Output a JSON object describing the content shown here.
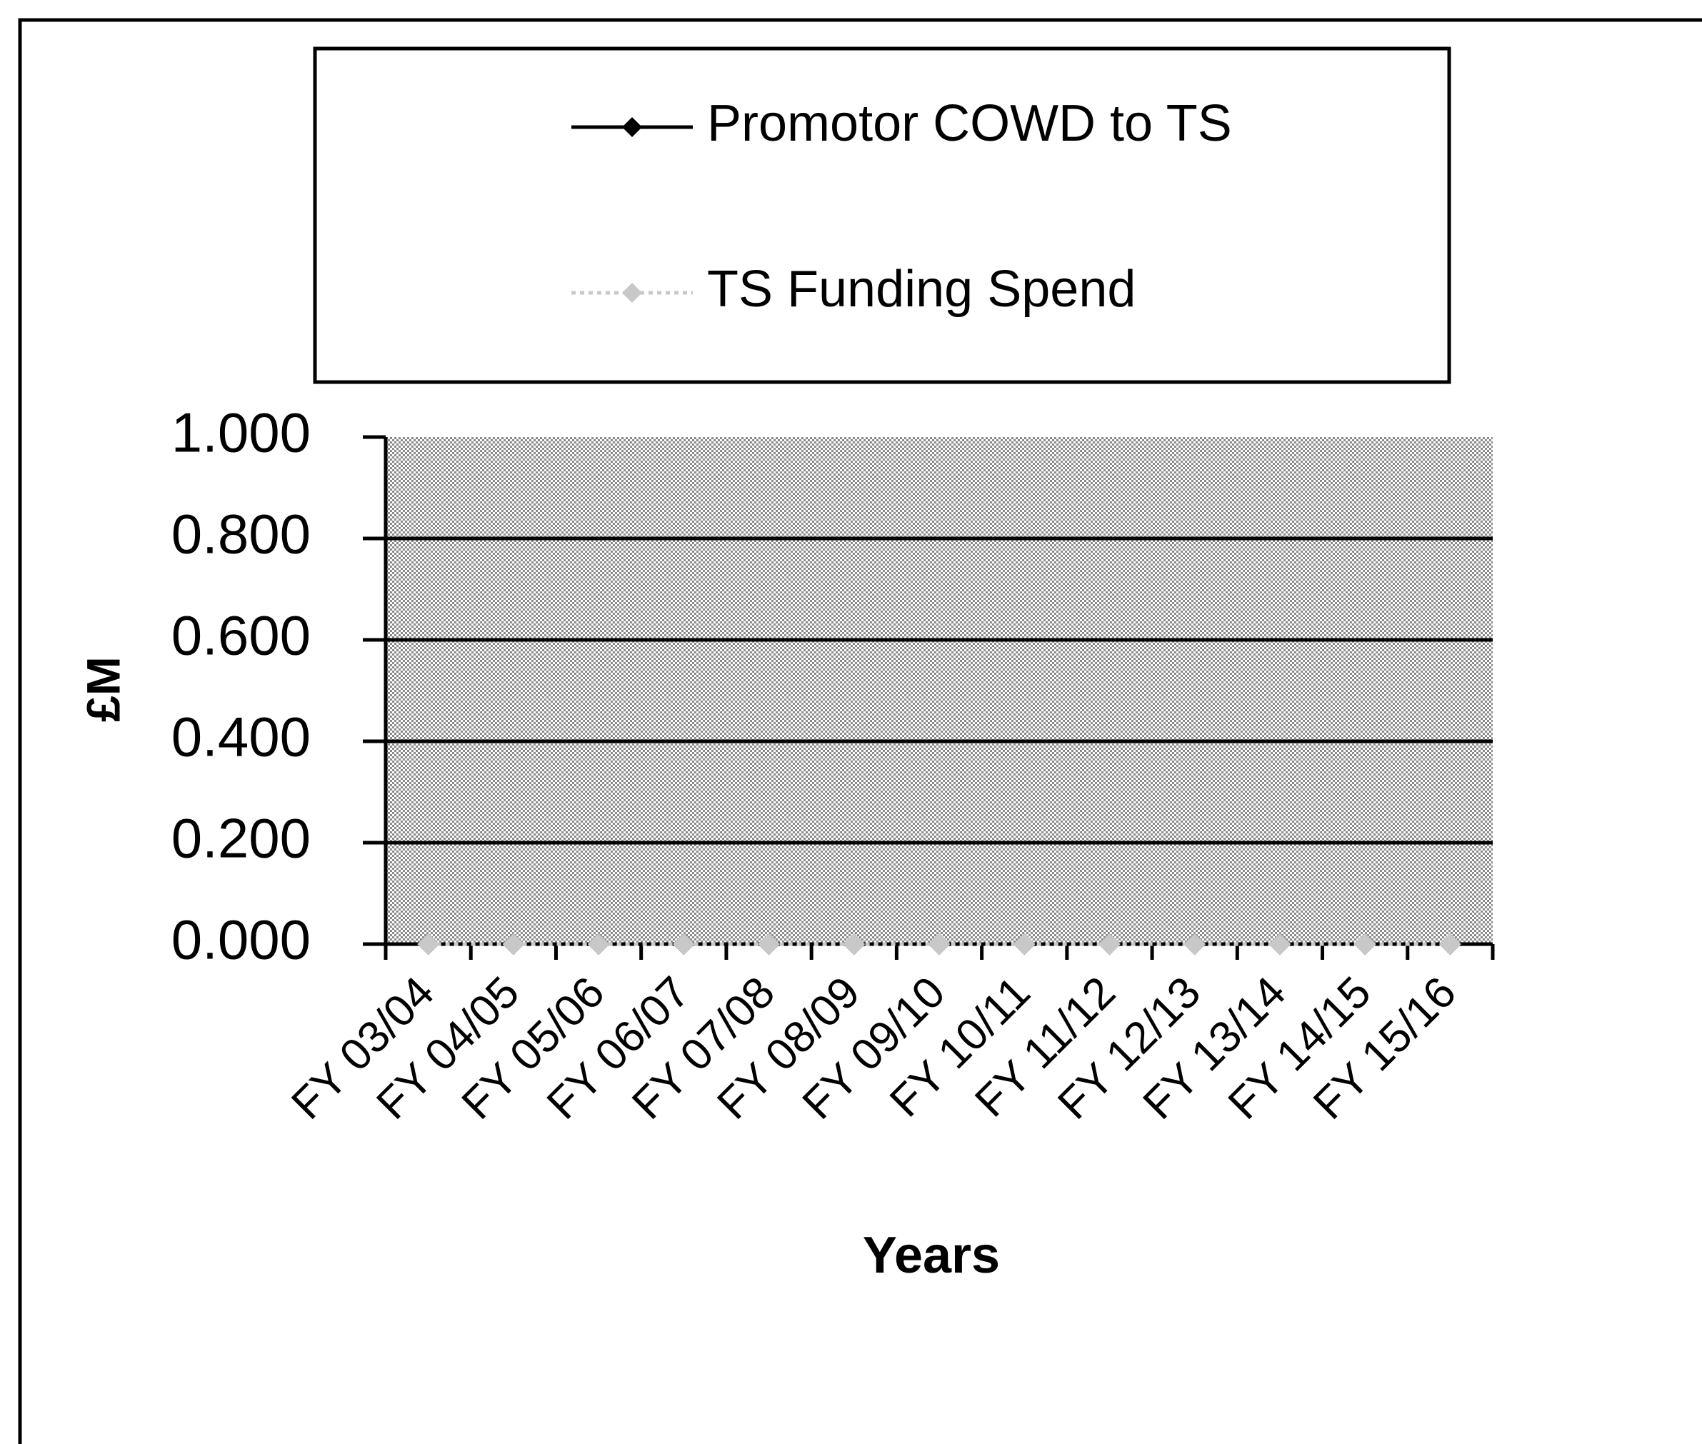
{
  "chart_data": {
    "type": "line",
    "x_label": "Years",
    "y_label": "£M",
    "categories": [
      "FY 03/04",
      "FY 04/05",
      "FY 05/06",
      "FY 06/07",
      "FY 07/08",
      "FY 08/09",
      "FY 09/10",
      "FY 10/11",
      "FY 11/12",
      "FY 12/13",
      "FY 13/14",
      "FY 14/15",
      "FY 15/16"
    ],
    "series": [
      {
        "name": "Promotor COWD to TS",
        "color": "#000000",
        "values": [
          0,
          0,
          0,
          0,
          0,
          0,
          0,
          0,
          0,
          0,
          0,
          0,
          0
        ]
      },
      {
        "name": "TS Funding Spend",
        "color": "#c8c8c8",
        "values": [
          0,
          0,
          0,
          0,
          0,
          0,
          0,
          0,
          0,
          0,
          0,
          0,
          0
        ]
      }
    ],
    "ylim": [
      0,
      1
    ],
    "yticks": [
      {
        "value": 0,
        "label": "0.000"
      },
      {
        "value": 0.2,
        "label": "0.200"
      },
      {
        "value": 0.4,
        "label": "0.400"
      },
      {
        "value": 0.6,
        "label": "0.600"
      },
      {
        "value": 0.8,
        "label": "0.800"
      },
      {
        "value": 1,
        "label": "1.000"
      }
    ],
    "grid": true,
    "legend": "top"
  }
}
